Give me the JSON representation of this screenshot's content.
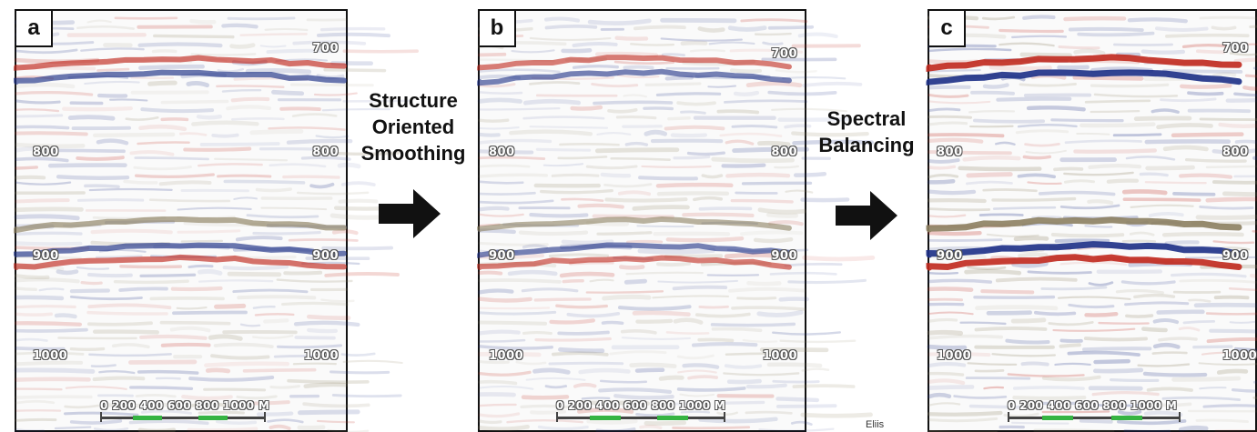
{
  "panels": [
    {
      "label": "a",
      "time_labels": {
        "t700": "700",
        "t800": "800",
        "t900": "900",
        "t1000": "1000"
      },
      "scale_text": "0 200 400 600 800 1000 M",
      "intensity": 0.55
    },
    {
      "label": "b",
      "time_labels": {
        "t700": "700",
        "t800": "800",
        "t900": "900",
        "t1000": "1000"
      },
      "scale_text": "0 200 400 600 800 1000 M",
      "intensity": 0.45
    },
    {
      "label": "c",
      "time_labels": {
        "t700": "700",
        "t800": "800",
        "t900": "900",
        "t1000": "1000"
      },
      "scale_text": "0 200 400 600 800 1000 M",
      "intensity": 1.0
    }
  ],
  "steps": [
    {
      "lines": [
        "Structure",
        "Oriented",
        "Smoothing"
      ]
    },
    {
      "lines": [
        "Spectral",
        "Balancing"
      ]
    }
  ],
  "credit": "Eliis",
  "colors": {
    "positive": "#c0281d",
    "negative": "#1c2f86",
    "neutral": "#8c8060",
    "scale_green": "#36b443"
  }
}
